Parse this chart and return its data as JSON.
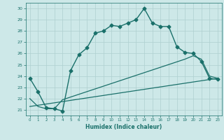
{
  "title": "",
  "xlabel": "Humidex (Indice chaleur)",
  "xlim": [
    -0.5,
    23.5
  ],
  "ylim": [
    20.5,
    30.5
  ],
  "yticks": [
    21,
    22,
    23,
    24,
    25,
    26,
    27,
    28,
    29,
    30
  ],
  "xticks": [
    0,
    1,
    2,
    3,
    4,
    5,
    6,
    7,
    8,
    9,
    10,
    11,
    12,
    13,
    14,
    15,
    16,
    17,
    18,
    19,
    20,
    21,
    22,
    23
  ],
  "background_color": "#cde8e8",
  "grid_color": "#aecfcf",
  "line_color": "#1a706a",
  "lines": [
    {
      "x": [
        0,
        1,
        2,
        3,
        4,
        5,
        6,
        7,
        8,
        9,
        10,
        11,
        12,
        13,
        14,
        15,
        16,
        17,
        18,
        19,
        20,
        21,
        22,
        23
      ],
      "y": [
        23.8,
        22.6,
        21.2,
        21.1,
        20.9,
        24.5,
        25.9,
        26.5,
        27.8,
        28.0,
        28.5,
        28.4,
        28.7,
        29.0,
        30.0,
        28.7,
        28.4,
        28.4,
        26.6,
        26.1,
        26.0,
        25.3,
        23.8,
        23.7
      ],
      "marker": "D",
      "markersize": 2.5,
      "linewidth": 1.0
    },
    {
      "x": [
        0,
        1,
        2,
        3,
        4,
        19,
        20,
        21,
        22,
        23
      ],
      "y": [
        22.0,
        21.3,
        21.1,
        21.1,
        21.9,
        25.5,
        25.8,
        25.5,
        24.0,
        23.8
      ],
      "marker": null,
      "linewidth": 0.9
    },
    {
      "x": [
        0,
        23
      ],
      "y": [
        21.3,
        23.8
      ],
      "marker": null,
      "linewidth": 0.9
    }
  ]
}
